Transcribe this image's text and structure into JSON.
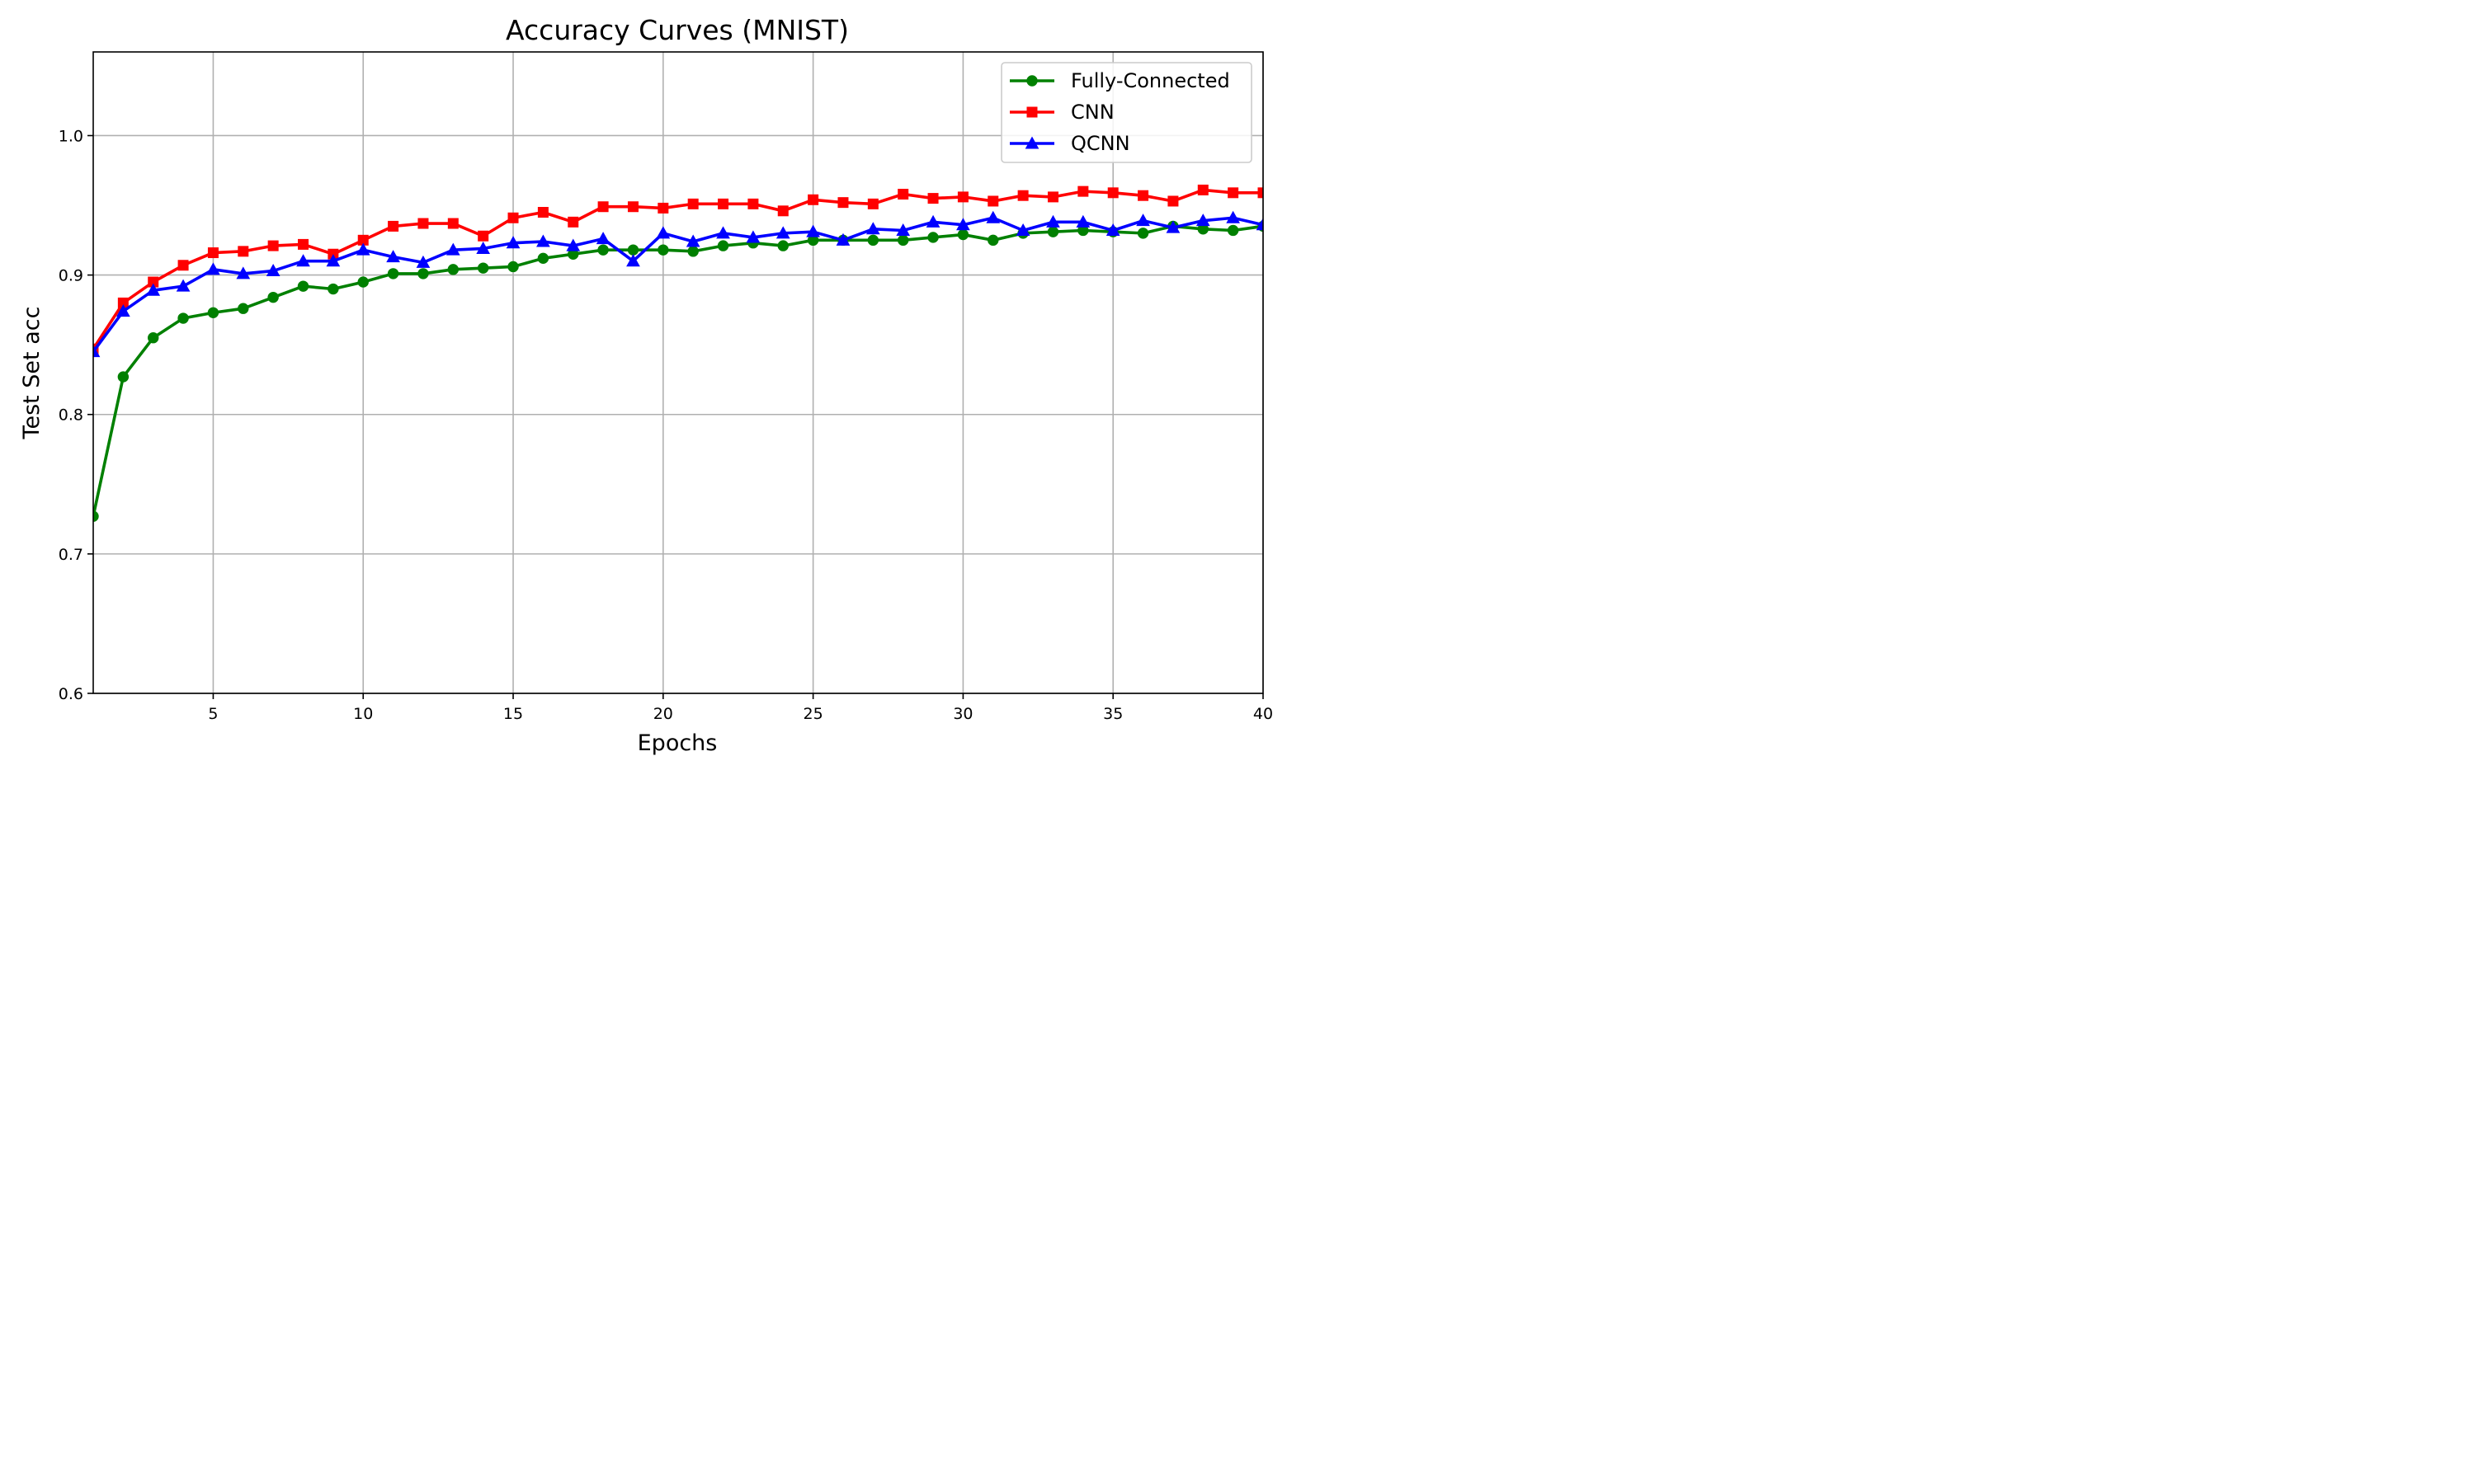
{
  "chart_data": {
    "type": "line",
    "title": "Accuracy Curves (MNIST)",
    "xlabel": "Epochs",
    "ylabel": "Test Set acc",
    "xlim": [
      1,
      40
    ],
    "ylim": [
      0.6,
      1.06
    ],
    "x_ticks": [
      5,
      10,
      15,
      20,
      25,
      30,
      35,
      40
    ],
    "y_ticks": [
      0.6,
      0.7,
      0.8,
      0.9,
      1.0
    ],
    "x_tick_labels": [
      "5",
      "10",
      "15",
      "20",
      "25",
      "30",
      "35",
      "40"
    ],
    "y_tick_labels": [
      "0.6",
      "0.7",
      "0.8",
      "0.9",
      "1.0"
    ],
    "grid": true,
    "legend_position": "top-right",
    "x": [
      1,
      2,
      3,
      4,
      5,
      6,
      7,
      8,
      9,
      10,
      11,
      12,
      13,
      14,
      15,
      16,
      17,
      18,
      19,
      20,
      21,
      22,
      23,
      24,
      25,
      26,
      27,
      28,
      29,
      30,
      31,
      32,
      33,
      34,
      35,
      36,
      37,
      38,
      39,
      40
    ],
    "series": [
      {
        "name": "Fully-Connected",
        "color": "#008000",
        "marker": "circle",
        "values": [
          0.727,
          0.827,
          0.855,
          0.869,
          0.873,
          0.876,
          0.884,
          0.892,
          0.89,
          0.895,
          0.901,
          0.901,
          0.904,
          0.905,
          0.906,
          0.912,
          0.915,
          0.918,
          0.918,
          0.918,
          0.917,
          0.921,
          0.923,
          0.921,
          0.925,
          0.925,
          0.925,
          0.925,
          0.927,
          0.929,
          0.925,
          0.93,
          0.931,
          0.932,
          0.931,
          0.93,
          0.935,
          0.933,
          0.932,
          0.935
        ]
      },
      {
        "name": "CNN",
        "color": "#ff0000",
        "marker": "square",
        "values": [
          0.847,
          0.88,
          0.895,
          0.907,
          0.916,
          0.917,
          0.921,
          0.922,
          0.915,
          0.925,
          0.935,
          0.937,
          0.937,
          0.928,
          0.941,
          0.945,
          0.938,
          0.949,
          0.949,
          0.948,
          0.951,
          0.951,
          0.951,
          0.946,
          0.954,
          0.952,
          0.951,
          0.958,
          0.955,
          0.956,
          0.953,
          0.957,
          0.956,
          0.96,
          0.959,
          0.957,
          0.953,
          0.961,
          0.959,
          0.959
        ]
      },
      {
        "name": "QCNN",
        "color": "#0000ff",
        "marker": "triangle",
        "values": [
          0.845,
          0.874,
          0.889,
          0.892,
          0.904,
          0.901,
          0.903,
          0.91,
          0.91,
          0.918,
          0.913,
          0.909,
          0.918,
          0.919,
          0.923,
          0.924,
          0.921,
          0.926,
          0.91,
          0.93,
          0.924,
          0.93,
          0.927,
          0.93,
          0.931,
          0.925,
          0.933,
          0.932,
          0.938,
          0.936,
          0.941,
          0.932,
          0.938,
          0.938,
          0.932,
          0.939,
          0.934,
          0.939,
          0.941,
          0.936
        ]
      }
    ]
  }
}
